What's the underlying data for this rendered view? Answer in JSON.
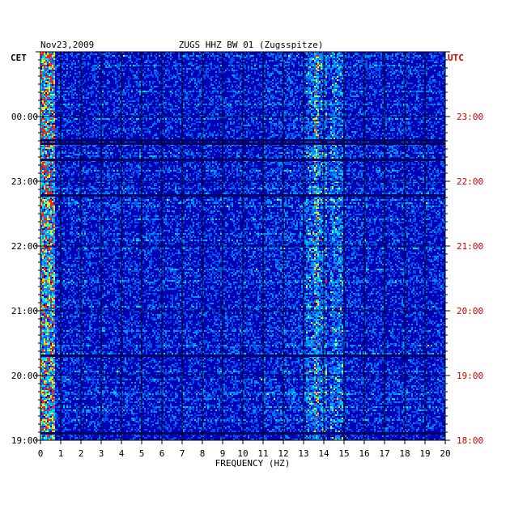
{
  "chart_data": {
    "type": "heatmap",
    "date": "Nov23,2009",
    "title": "ZUGS HHZ BW 01 (Zugsspitze)",
    "left_timezone": "CET",
    "right_timezone": "UTC",
    "xlabel": "FREQUENCY (HZ)",
    "x_ticks": [
      "0",
      "1",
      "2",
      "3",
      "4",
      "5",
      "6",
      "7",
      "8",
      "9",
      "10",
      "11",
      "12",
      "13",
      "14",
      "15",
      "16",
      "17",
      "18",
      "19",
      "20"
    ],
    "xlim": [
      0,
      20
    ],
    "left_ticks": [
      "00:00",
      "23:00",
      "22:00",
      "21:00",
      "20:00",
      "19:00"
    ],
    "right_ticks": [
      "23:00",
      "22:00",
      "21:00",
      "20:00",
      "19:00",
      "18:00"
    ],
    "colors": {
      "background": "#0000b4",
      "grid": "#000000",
      "utc_labels": "#cc0000"
    },
    "energy_bands_hz": [
      {
        "center": 0.3,
        "level": "high"
      },
      {
        "center": 13.4,
        "level": "medium"
      },
      {
        "center": 13.8,
        "level": "medium"
      },
      {
        "center": 14.6,
        "level": "medium"
      }
    ],
    "dark_rows_time_cet": [
      "00:20",
      "21:00",
      "20:00"
    ]
  }
}
